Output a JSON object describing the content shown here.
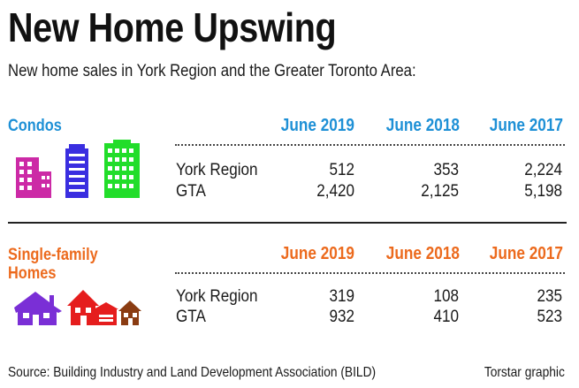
{
  "title": "New Home Upswing",
  "subtitle": "New home sales in York Region and the Greater Toronto Area:",
  "colors": {
    "condo": "#1e90d6",
    "single_family": "#ec6a1d",
    "building_magenta": "#cc2aa6",
    "building_blue": "#3a2ee0",
    "building_green": "#22dd2a",
    "house_purple": "#7a2fd6",
    "house_red": "#e51d1d",
    "house_brown": "#8a3c12"
  },
  "chart_data": [
    {
      "type": "table",
      "title": "Condos",
      "columns": [
        "June 2019",
        "June 2018",
        "June 2017"
      ],
      "rows": [
        {
          "label": "York Region",
          "values": [
            "512",
            "353",
            "2,224"
          ]
        },
        {
          "label": "GTA",
          "values": [
            "2,420",
            "2,125",
            "5,198"
          ]
        }
      ]
    },
    {
      "type": "table",
      "title": "Single-family Homes",
      "columns": [
        "June 2019",
        "June 2018",
        "June 2017"
      ],
      "rows": [
        {
          "label": "York Region",
          "values": [
            "319",
            "108",
            "235"
          ]
        },
        {
          "label": "GTA",
          "values": [
            "932",
            "410",
            "523"
          ]
        }
      ]
    }
  ],
  "source": "Source: Building Industry and Land Development Association (BILD)",
  "credit": "Torstar graphic",
  "icons": {
    "condo": "apartment-buildings-icon",
    "single_family": "houses-icon"
  }
}
